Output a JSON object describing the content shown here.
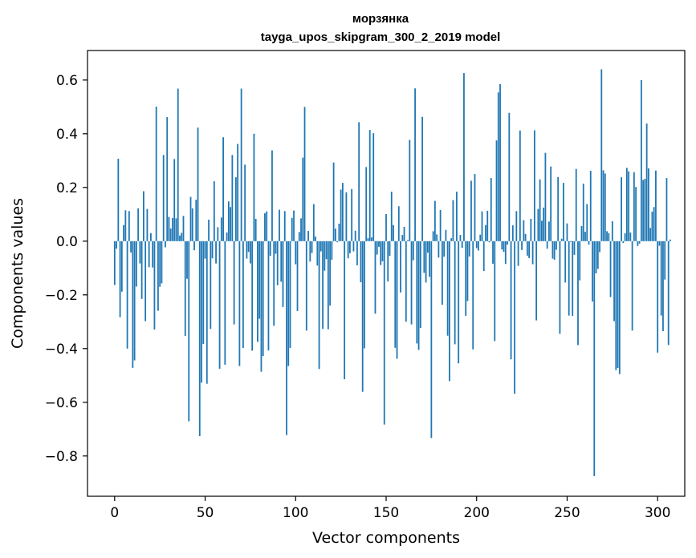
{
  "chart_data": {
    "type": "bar",
    "title": "морзянка",
    "subtitle": "tayga_upos_skipgram_300_2_2019 model",
    "xlabel": "Vector components",
    "ylabel": "Components values",
    "xlim": [
      -15,
      315
    ],
    "ylim": [
      -0.95,
      0.71
    ],
    "xticks": [
      0,
      50,
      100,
      150,
      200,
      250,
      300
    ],
    "yticks": [
      0.6,
      0.4,
      0.2,
      0.0,
      -0.2,
      -0.4,
      -0.6,
      -0.8
    ],
    "ytick_labels": [
      "0.6",
      "0.4",
      "0.2",
      "0.0",
      "−0.2",
      "−0.4",
      "−0.6",
      "−0.8"
    ],
    "bar_color": "#1f77b4",
    "grid": false,
    "values": [
      -0.163,
      -0.028,
      0.307,
      -0.283,
      -0.188,
      0.06,
      0.115,
      -0.4,
      0.112,
      -0.042,
      -0.472,
      -0.444,
      -0.169,
      0.122,
      -0.083,
      -0.215,
      0.186,
      -0.298,
      0.12,
      -0.097,
      0.03,
      -0.098,
      -0.329,
      0.501,
      -0.259,
      -0.17,
      -0.157,
      0.321,
      -0.023,
      0.462,
      0.09,
      0.047,
      0.086,
      0.306,
      0.085,
      0.568,
      0.021,
      0.031,
      0.094,
      -0.353,
      -0.14,
      -0.671,
      0.165,
      0.122,
      -0.034,
      0.154,
      0.423,
      -0.726,
      -0.527,
      -0.383,
      -0.065,
      -0.531,
      0.08,
      -0.327,
      -0.064,
      0.223,
      -0.083,
      0.052,
      -0.475,
      0.088,
      0.387,
      -0.46,
      0.032,
      0.148,
      0.127,
      0.321,
      -0.31,
      0.238,
      0.362,
      -0.465,
      0.568,
      -0.398,
      0.285,
      -0.065,
      -0.04,
      -0.083,
      -0.408,
      0.4,
      0.083,
      -0.375,
      -0.289,
      -0.486,
      -0.428,
      0.104,
      0.111,
      -0.407,
      -0.055,
      0.338,
      -0.315,
      -0.047,
      -0.164,
      0.117,
      -0.151,
      -0.245,
      0.112,
      -0.722,
      -0.465,
      -0.398,
      0.087,
      0.114,
      -0.086,
      -0.26,
      0.034,
      0.085,
      0.311,
      0.5,
      -0.333,
      0.038,
      -0.076,
      -0.044,
      0.138,
      0.017,
      -0.091,
      -0.476,
      -0.038,
      -0.327,
      -0.11,
      -0.067,
      -0.328,
      -0.24,
      -0.069,
      0.293,
      0.047,
      -0.004,
      0.065,
      0.192,
      0.217,
      -0.514,
      0.182,
      -0.064,
      -0.045,
      0.194,
      -0.038,
      0.039,
      -0.09,
      0.443,
      -0.153,
      -0.561,
      -0.399,
      0.276,
      0.011,
      0.414,
      0.014,
      0.402,
      -0.27,
      -0.05,
      -0.021,
      -0.089,
      -0.075,
      -0.683,
      0.101,
      -0.15,
      -0.055,
      0.184,
      0.06,
      -0.397,
      -0.438,
      0.13,
      -0.191,
      0.023,
      0.053,
      -0.3,
      0.004,
      0.377,
      -0.31,
      -0.071,
      0.569,
      -0.381,
      -0.405,
      -0.323,
      0.463,
      -0.118,
      -0.154,
      -0.043,
      -0.133,
      -0.733,
      0.037,
      0.15,
      0.025,
      -0.061,
      0.116,
      -0.237,
      -0.058,
      0.042,
      -0.352,
      -0.521,
      0.011,
      0.153,
      -0.384,
      0.184,
      -0.455,
      0.023,
      -0.025,
      0.626,
      -0.278,
      -0.223,
      -0.057,
      0.225,
      -0.403,
      0.25,
      -0.026,
      -0.035,
      0.024,
      0.111,
      -0.111,
      0.06,
      0.113,
      -0.004,
      0.235,
      -0.084,
      -0.372,
      0.375,
      0.554,
      0.585,
      -0.031,
      -0.04,
      -0.085,
      -0.013,
      0.478,
      -0.44,
      0.059,
      -0.568,
      0.112,
      -0.092,
      0.412,
      -0.033,
      0.078,
      0.027,
      -0.054,
      -0.063,
      0.083,
      -0.086,
      0.413,
      -0.295,
      0.12,
      0.23,
      0.076,
      0.125,
      0.329,
      -0.028,
      0.073,
      0.278,
      -0.065,
      -0.069,
      -0.032,
      0.239,
      -0.345,
      0.009,
      0.217,
      -0.154,
      0.066,
      -0.277,
      -0.003,
      -0.278,
      -0.051,
      0.269,
      -0.387,
      -0.146,
      0.056,
      0.214,
      0.035,
      0.138,
      -0.013,
      0.262,
      -0.225,
      -0.875,
      -0.12,
      -0.103,
      -0.041,
      0.64,
      0.264,
      0.252,
      0.037,
      0.03,
      -0.208,
      0.074,
      -0.298,
      -0.48,
      -0.472,
      -0.495,
      0.238,
      -0.007,
      0.029,
      0.273,
      0.26,
      0.032,
      -0.333,
      0.257,
      0.202,
      -0.018,
      -0.009,
      0.6,
      0.228,
      0.232,
      0.438,
      0.271,
      0.049,
      0.11,
      0.127,
      0.263,
      -0.415,
      -0.017,
      -0.277,
      -0.335,
      -0.143,
      0.235,
      -0.387,
      0.006
    ]
  }
}
